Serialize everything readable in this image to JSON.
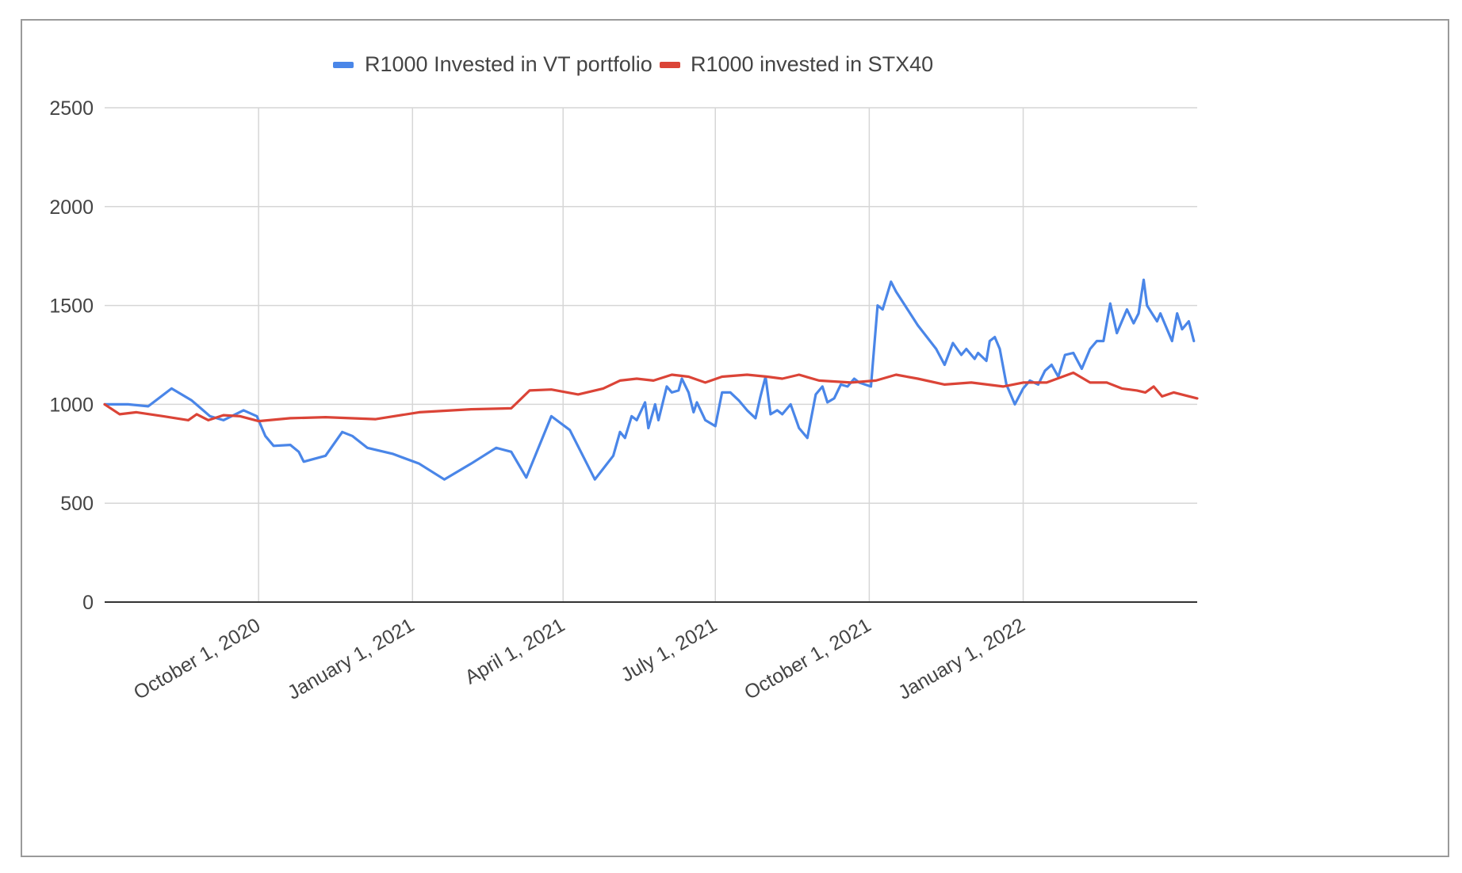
{
  "chart_data": {
    "type": "line",
    "title": "",
    "xlabel": "",
    "ylabel": "",
    "ylim": [
      0,
      2500
    ],
    "xlim": [
      "2020-07-01",
      "2022-04-15"
    ],
    "y_ticks": [
      0,
      500,
      1000,
      1500,
      2000,
      2500
    ],
    "x_ticks": [
      {
        "date": "2020-10-01",
        "label": "October 1, 2020"
      },
      {
        "date": "2021-01-01",
        "label": "January 1, 2021"
      },
      {
        "date": "2021-04-01",
        "label": "April 1, 2021"
      },
      {
        "date": "2021-07-01",
        "label": "July 1, 2021"
      },
      {
        "date": "2021-10-01",
        "label": "October 1, 2021"
      },
      {
        "date": "2022-01-01",
        "label": "January 1, 2022"
      }
    ],
    "grid": true,
    "legend_position": "top",
    "series": [
      {
        "name": "R1000 Invested in VT portfolio",
        "color": "#4a86e8",
        "points": [
          [
            "2020-07-01",
            1000
          ],
          [
            "2020-07-15",
            1000
          ],
          [
            "2020-07-27",
            990
          ],
          [
            "2020-08-10",
            1080
          ],
          [
            "2020-08-22",
            1020
          ],
          [
            "2020-09-02",
            940
          ],
          [
            "2020-09-10",
            920
          ],
          [
            "2020-09-22",
            970
          ],
          [
            "2020-09-30",
            940
          ],
          [
            "2020-10-05",
            840
          ],
          [
            "2020-10-10",
            790
          ],
          [
            "2020-10-20",
            795
          ],
          [
            "2020-10-25",
            760
          ],
          [
            "2020-10-28",
            710
          ],
          [
            "2020-11-10",
            740
          ],
          [
            "2020-11-20",
            860
          ],
          [
            "2020-11-26",
            840
          ],
          [
            "2020-12-05",
            780
          ],
          [
            "2020-12-20",
            750
          ],
          [
            "2021-01-05",
            700
          ],
          [
            "2021-01-20",
            620
          ],
          [
            "2021-02-05",
            700
          ],
          [
            "2021-02-20",
            780
          ],
          [
            "2021-03-01",
            760
          ],
          [
            "2021-03-10",
            630
          ],
          [
            "2021-03-25",
            940
          ],
          [
            "2021-04-05",
            870
          ],
          [
            "2021-04-20",
            620
          ],
          [
            "2021-05-01",
            740
          ],
          [
            "2021-05-05",
            860
          ],
          [
            "2021-05-08",
            830
          ],
          [
            "2021-05-12",
            940
          ],
          [
            "2021-05-15",
            920
          ],
          [
            "2021-05-20",
            1010
          ],
          [
            "2021-05-22",
            880
          ],
          [
            "2021-05-26",
            1000
          ],
          [
            "2021-05-28",
            920
          ],
          [
            "2021-06-02",
            1090
          ],
          [
            "2021-06-05",
            1060
          ],
          [
            "2021-06-09",
            1070
          ],
          [
            "2021-06-11",
            1130
          ],
          [
            "2021-06-15",
            1060
          ],
          [
            "2021-06-18",
            960
          ],
          [
            "2021-06-20",
            1010
          ],
          [
            "2021-06-25",
            920
          ],
          [
            "2021-07-01",
            890
          ],
          [
            "2021-07-05",
            1060
          ],
          [
            "2021-07-10",
            1060
          ],
          [
            "2021-07-15",
            1020
          ],
          [
            "2021-07-20",
            970
          ],
          [
            "2021-07-25",
            930
          ],
          [
            "2021-07-28",
            1040
          ],
          [
            "2021-07-31",
            1140
          ],
          [
            "2021-08-03",
            950
          ],
          [
            "2021-08-07",
            970
          ],
          [
            "2021-08-10",
            950
          ],
          [
            "2021-08-15",
            1000
          ],
          [
            "2021-08-20",
            880
          ],
          [
            "2021-08-25",
            830
          ],
          [
            "2021-08-30",
            1050
          ],
          [
            "2021-09-03",
            1090
          ],
          [
            "2021-09-06",
            1010
          ],
          [
            "2021-09-10",
            1030
          ],
          [
            "2021-09-14",
            1100
          ],
          [
            "2021-09-18",
            1090
          ],
          [
            "2021-09-22",
            1130
          ],
          [
            "2021-09-25",
            1110
          ],
          [
            "2021-10-02",
            1090
          ],
          [
            "2021-10-06",
            1500
          ],
          [
            "2021-10-09",
            1480
          ],
          [
            "2021-10-14",
            1620
          ],
          [
            "2021-10-17",
            1570
          ],
          [
            "2021-10-30",
            1400
          ],
          [
            "2021-11-10",
            1280
          ],
          [
            "2021-11-15",
            1200
          ],
          [
            "2021-11-20",
            1310
          ],
          [
            "2021-11-25",
            1250
          ],
          [
            "2021-11-28",
            1280
          ],
          [
            "2021-12-03",
            1230
          ],
          [
            "2021-12-05",
            1260
          ],
          [
            "2021-12-10",
            1220
          ],
          [
            "2021-12-12",
            1320
          ],
          [
            "2021-12-15",
            1340
          ],
          [
            "2021-12-18",
            1280
          ],
          [
            "2021-12-22",
            1100
          ],
          [
            "2021-12-27",
            1000
          ],
          [
            "2022-01-01",
            1080
          ],
          [
            "2022-01-05",
            1120
          ],
          [
            "2022-01-10",
            1100
          ],
          [
            "2022-01-14",
            1170
          ],
          [
            "2022-01-18",
            1200
          ],
          [
            "2022-01-22",
            1140
          ],
          [
            "2022-01-26",
            1250
          ],
          [
            "2022-01-31",
            1260
          ],
          [
            "2022-02-05",
            1180
          ],
          [
            "2022-02-10",
            1280
          ],
          [
            "2022-02-14",
            1320
          ],
          [
            "2022-02-18",
            1320
          ],
          [
            "2022-02-22",
            1510
          ],
          [
            "2022-02-26",
            1360
          ],
          [
            "2022-03-01",
            1420
          ],
          [
            "2022-03-04",
            1480
          ],
          [
            "2022-03-08",
            1410
          ],
          [
            "2022-03-11",
            1460
          ],
          [
            "2022-03-14",
            1630
          ],
          [
            "2022-03-16",
            1500
          ],
          [
            "2022-03-19",
            1460
          ],
          [
            "2022-03-22",
            1420
          ],
          [
            "2022-03-24",
            1460
          ],
          [
            "2022-03-28",
            1380
          ],
          [
            "2022-03-31",
            1320
          ],
          [
            "2022-04-03",
            1460
          ],
          [
            "2022-04-06",
            1380
          ],
          [
            "2022-04-10",
            1420
          ],
          [
            "2022-04-13",
            1320
          ]
        ]
      },
      {
        "name": "R1000 invested in STX40",
        "color": "#db4437",
        "points": [
          [
            "2020-07-01",
            1000
          ],
          [
            "2020-07-10",
            950
          ],
          [
            "2020-07-20",
            960
          ],
          [
            "2020-08-05",
            940
          ],
          [
            "2020-08-20",
            920
          ],
          [
            "2020-08-25",
            950
          ],
          [
            "2020-09-01",
            920
          ],
          [
            "2020-09-10",
            945
          ],
          [
            "2020-09-20",
            940
          ],
          [
            "2020-10-01",
            915
          ],
          [
            "2020-10-20",
            930
          ],
          [
            "2020-11-10",
            935
          ],
          [
            "2020-12-10",
            925
          ],
          [
            "2021-01-05",
            960
          ],
          [
            "2021-02-05",
            975
          ],
          [
            "2021-03-01",
            980
          ],
          [
            "2021-03-12",
            1070
          ],
          [
            "2021-03-25",
            1075
          ],
          [
            "2021-04-10",
            1050
          ],
          [
            "2021-04-25",
            1080
          ],
          [
            "2021-05-05",
            1120
          ],
          [
            "2021-05-15",
            1130
          ],
          [
            "2021-05-25",
            1120
          ],
          [
            "2021-06-05",
            1150
          ],
          [
            "2021-06-15",
            1140
          ],
          [
            "2021-06-25",
            1110
          ],
          [
            "2021-07-05",
            1140
          ],
          [
            "2021-07-20",
            1150
          ],
          [
            "2021-08-01",
            1140
          ],
          [
            "2021-08-10",
            1130
          ],
          [
            "2021-08-20",
            1150
          ],
          [
            "2021-09-01",
            1120
          ],
          [
            "2021-09-20",
            1110
          ],
          [
            "2021-10-05",
            1120
          ],
          [
            "2021-10-17",
            1150
          ],
          [
            "2021-10-30",
            1130
          ],
          [
            "2021-11-15",
            1100
          ],
          [
            "2021-12-01",
            1110
          ],
          [
            "2021-12-20",
            1090
          ],
          [
            "2022-01-01",
            1110
          ],
          [
            "2022-01-15",
            1110
          ],
          [
            "2022-01-31",
            1160
          ],
          [
            "2022-02-10",
            1110
          ],
          [
            "2022-02-20",
            1110
          ],
          [
            "2022-03-01",
            1080
          ],
          [
            "2022-03-10",
            1070
          ],
          [
            "2022-03-15",
            1060
          ],
          [
            "2022-03-20",
            1090
          ],
          [
            "2022-03-25",
            1040
          ],
          [
            "2022-04-01",
            1060
          ],
          [
            "2022-04-15",
            1030
          ]
        ]
      }
    ]
  }
}
